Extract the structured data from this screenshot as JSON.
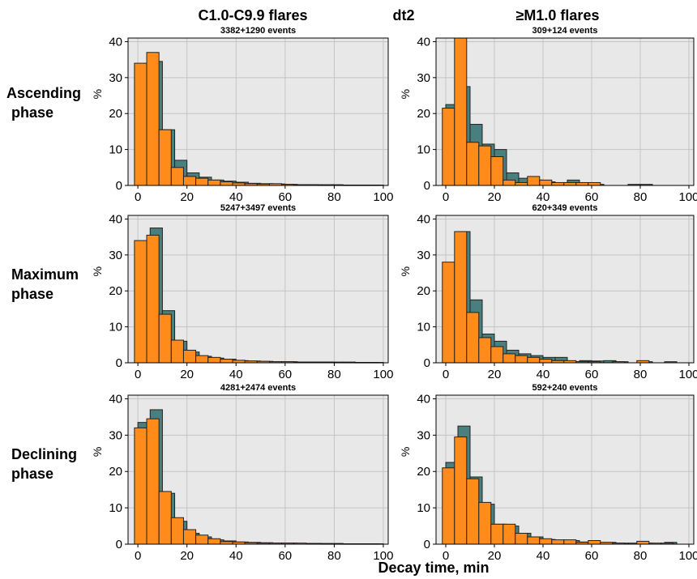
{
  "header": {
    "left_title": "C1.0-C9.9 flares",
    "center_title": "dt2",
    "right_title": "≥M1.0 flares"
  },
  "row_labels": [
    [
      "Ascending",
      "phase"
    ],
    [
      "Maximum",
      "phase"
    ],
    [
      "Declining",
      "phase"
    ]
  ],
  "x_axis_label": "Decay time, min",
  "colors": {
    "teal": "#4a7f7f",
    "orange": "#ff8c1a",
    "panel_bg": "#e8e8e8",
    "grid": "#c4c4c4"
  },
  "chart_data": [
    {
      "type": "bar",
      "subtitle": "3382+1290 events",
      "ylabel": "%",
      "xlim": [
        -4,
        102
      ],
      "ylim": [
        0,
        41
      ],
      "xticks": [
        0,
        20,
        40,
        60,
        80,
        100
      ],
      "yticks": [
        0,
        10,
        20,
        30,
        40
      ],
      "bin_width": 5,
      "bin_starts": [
        0,
        5,
        10,
        15,
        20,
        25,
        30,
        35,
        40,
        45,
        50,
        55,
        60,
        65,
        70,
        75,
        80,
        85,
        90,
        95
      ],
      "series": [
        {
          "color": "teal",
          "values": [
            32.5,
            34.5,
            15.5,
            7,
            3.5,
            2.3,
            1.5,
            1.2,
            0.9,
            0.6,
            0.5,
            0.4,
            0.3,
            0.2,
            0.2,
            0.2,
            0.1,
            0.1,
            0.1,
            0.1
          ]
        },
        {
          "color": "orange",
          "values": [
            34,
            37,
            15.5,
            5,
            2.5,
            2,
            1.5,
            1,
            0.7,
            0.5,
            0.4,
            0.5,
            0.3,
            0.2,
            0.2,
            0.1,
            0.2,
            0.1,
            0.1,
            0.1
          ]
        }
      ]
    },
    {
      "type": "bar",
      "subtitle": "309+124 events",
      "ylabel": "%",
      "xlim": [
        -4,
        102
      ],
      "ylim": [
        0,
        41
      ],
      "xticks": [
        0,
        20,
        40,
        60,
        80,
        100
      ],
      "yticks": [
        0,
        10,
        20,
        30,
        40
      ],
      "bin_width": 5,
      "bin_starts": [
        0,
        5,
        10,
        15,
        20,
        25,
        30,
        35,
        40,
        45,
        50,
        55,
        60,
        65,
        70,
        75,
        80,
        85,
        90,
        95
      ],
      "series": [
        {
          "color": "teal",
          "values": [
            22.5,
            27.5,
            17,
            11.5,
            10,
            3.5,
            2,
            1.5,
            1,
            0.5,
            1.5,
            0.5,
            0.3,
            0,
            0,
            0.3,
            0.3,
            0,
            0,
            0
          ]
        },
        {
          "color": "orange",
          "values": [
            21.5,
            41,
            12,
            11,
            8,
            1.5,
            0.8,
            2.5,
            1.5,
            0.8,
            0.8,
            0.8,
            0.8,
            0,
            0,
            0,
            0,
            0,
            0,
            0
          ]
        }
      ]
    },
    {
      "type": "bar",
      "subtitle": "5247+3497 events",
      "ylabel": "%",
      "xlim": [
        -4,
        102
      ],
      "ylim": [
        0,
        41
      ],
      "xticks": [
        0,
        20,
        40,
        60,
        80,
        100
      ],
      "yticks": [
        0,
        10,
        20,
        30,
        40
      ],
      "bin_width": 5,
      "bin_starts": [
        0,
        5,
        10,
        15,
        20,
        25,
        30,
        35,
        40,
        45,
        50,
        55,
        60,
        65,
        70,
        75,
        80,
        85,
        90,
        95
      ],
      "series": [
        {
          "color": "teal",
          "values": [
            32.5,
            37.5,
            14.5,
            6,
            3,
            1.8,
            1.3,
            1,
            0.6,
            0.5,
            0.4,
            0.3,
            0.3,
            0.2,
            0.2,
            0.2,
            0.1,
            0.1,
            0.1,
            0.1
          ]
        },
        {
          "color": "orange",
          "values": [
            34,
            35.5,
            13.5,
            6.3,
            3.5,
            2,
            1.5,
            1,
            0.7,
            0.5,
            0.4,
            0.3,
            0.3,
            0.2,
            0.2,
            0.2,
            0.2,
            0.2,
            0.1,
            0.1
          ]
        }
      ]
    },
    {
      "type": "bar",
      "subtitle": "620+349 events",
      "ylabel": "%",
      "xlim": [
        -4,
        102
      ],
      "ylim": [
        0,
        41
      ],
      "xticks": [
        0,
        20,
        40,
        60,
        80,
        100
      ],
      "yticks": [
        0,
        10,
        20,
        30,
        40
      ],
      "bin_width": 5,
      "bin_starts": [
        0,
        5,
        10,
        15,
        20,
        25,
        30,
        35,
        40,
        45,
        50,
        55,
        60,
        65,
        70,
        75,
        80,
        85,
        90,
        95
      ],
      "series": [
        {
          "color": "teal",
          "values": [
            17.5,
            36.5,
            17.5,
            8,
            6,
            3.5,
            2.5,
            2,
            1.5,
            1.5,
            0.3,
            0.6,
            0.5,
            0.6,
            0.3,
            0,
            0.3,
            0,
            0.3,
            0
          ]
        },
        {
          "color": "orange",
          "values": [
            28,
            36.5,
            14,
            7,
            4.5,
            2.5,
            2,
            1.5,
            1,
            0.6,
            0.6,
            0.3,
            0.3,
            0,
            0.3,
            0,
            0.6,
            0,
            0,
            0
          ]
        }
      ]
    },
    {
      "type": "bar",
      "subtitle": "4281+2474 events",
      "ylabel": "%",
      "xlim": [
        -4,
        102
      ],
      "ylim": [
        0,
        41
      ],
      "xticks": [
        0,
        20,
        40,
        60,
        80,
        100
      ],
      "yticks": [
        0,
        10,
        20,
        30,
        40
      ],
      "bin_width": 5,
      "bin_starts": [
        0,
        5,
        10,
        15,
        20,
        25,
        30,
        35,
        40,
        45,
        50,
        55,
        60,
        65,
        70,
        75,
        80,
        85,
        90,
        95
      ],
      "series": [
        {
          "color": "teal",
          "values": [
            33.5,
            37,
            14,
            6.3,
            3,
            2,
            1.2,
            0.9,
            0.6,
            0.5,
            0.4,
            0.3,
            0.3,
            0.2,
            0.2,
            0.1,
            0.1,
            0.1,
            0.1,
            0.1
          ]
        },
        {
          "color": "orange",
          "values": [
            32,
            34.5,
            14.5,
            7.3,
            4,
            2.5,
            1.5,
            0.7,
            0.6,
            0.4,
            0.3,
            0.3,
            0.3,
            0.3,
            0.2,
            0.2,
            0.2,
            0.1,
            0.1,
            0.1
          ]
        }
      ]
    },
    {
      "type": "bar",
      "subtitle": "592+240 events",
      "ylabel": "%",
      "xlim": [
        -4,
        102
      ],
      "ylim": [
        0,
        41
      ],
      "xticks": [
        0,
        20,
        40,
        60,
        80,
        100
      ],
      "yticks": [
        0,
        10,
        20,
        30,
        40
      ],
      "bin_width": 5,
      "bin_starts": [
        0,
        5,
        10,
        15,
        20,
        25,
        30,
        35,
        40,
        45,
        50,
        55,
        60,
        65,
        70,
        75,
        80,
        85,
        90,
        95
      ],
      "series": [
        {
          "color": "teal",
          "values": [
            22.5,
            32.5,
            18.5,
            11,
            5.5,
            5,
            3,
            2,
            1.3,
            1,
            1,
            0.6,
            0.5,
            0.5,
            0.3,
            0.3,
            0.3,
            0,
            0.5,
            0
          ]
        },
        {
          "color": "orange",
          "values": [
            21,
            29.5,
            18,
            11.5,
            5.5,
            5.5,
            3,
            2,
            1.5,
            1.2,
            1.2,
            0.5,
            1,
            0.5,
            0.3,
            0,
            0.8,
            0.3,
            0.3,
            0
          ]
        }
      ]
    }
  ]
}
